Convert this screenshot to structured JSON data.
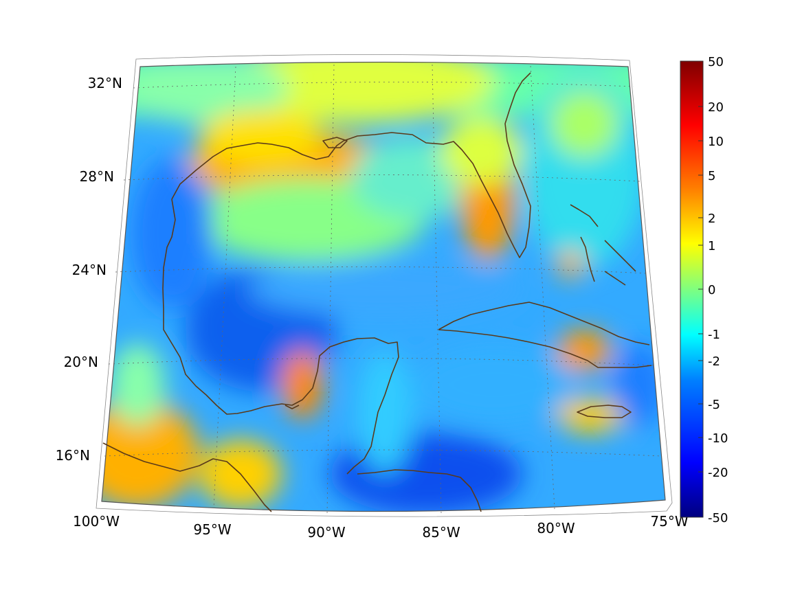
{
  "map": {
    "lon_range": [
      -100,
      -75
    ],
    "lat_range": [
      14,
      33
    ],
    "projection": "conic",
    "meridian_labels": [
      "100°W",
      "95°W",
      "90°W",
      "85°W",
      "80°W",
      "75°W"
    ],
    "parallel_labels": [
      "32°N",
      "28°N",
      "24°N",
      "20°N",
      "16°N"
    ],
    "grid": "dotted",
    "coastline_color": "#5a3a1a"
  },
  "colorbar": {
    "ticks": [
      "50",
      "20",
      "10",
      "5",
      "2",
      "1",
      "0",
      "-1",
      "-2",
      "-5",
      "-10",
      "-20",
      "-50"
    ],
    "colormap": "jet",
    "colors": [
      "#00007f",
      "#0000ff",
      "#007fff",
      "#00ffff",
      "#7fff7f",
      "#ffff00",
      "#ff7f00",
      "#ff0000",
      "#7f0000"
    ]
  }
}
